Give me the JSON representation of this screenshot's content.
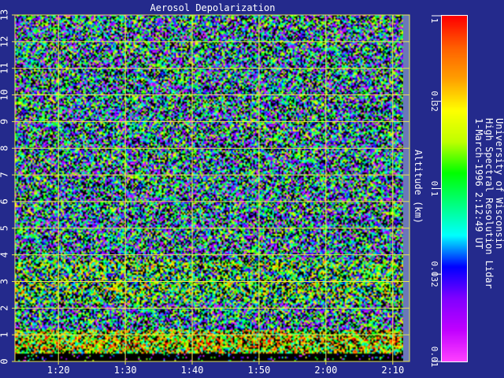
{
  "chart_data": {
    "type": "heatmap",
    "title": "Aerosol Depolarization",
    "ylabel": "Altitude (km)",
    "xlabel": "",
    "x_tick_labels": [
      "1:20",
      "1:30",
      "1:40",
      "1:50",
      "2:00",
      "2:10"
    ],
    "x_tick_minutes": [
      80,
      90,
      100,
      110,
      120,
      130
    ],
    "xlim_minutes": [
      73.5,
      132.5
    ],
    "y_tick_labels": [
      "0",
      "1",
      "2",
      "3",
      "4",
      "5",
      "6",
      "7",
      "8",
      "9",
      "10",
      "11",
      "12",
      "13"
    ],
    "ylim": [
      0,
      13
    ],
    "grid": true,
    "colorbar": {
      "scale": "log",
      "range": [
        0.01,
        1
      ],
      "tick_values": [
        0.01,
        0.032,
        0.1,
        0.32,
        1
      ],
      "tick_labels": [
        "0.01",
        "0.032",
        "0.1",
        "0.32",
        "1"
      ]
    },
    "colorbar_stops": [
      "#ff40ff",
      "#c000ff",
      "#8000ff",
      "#0000ff",
      "#00ffff",
      "#00ff80",
      "#00ff00",
      "#c0ff00",
      "#ffff00",
      "#ffa000",
      "#ff6000",
      "#ff0000"
    ],
    "annotation": [
      "University of Wisconsin",
      "High Spectral Resolution Lidar",
      "1-March-1996  2:12:49 UT"
    ],
    "colors": {
      "background": "#242a8c",
      "grid": "#e8e84c",
      "text": "#ffffff",
      "right_strip": "#6b78b8"
    },
    "data_layers": [
      {
        "altitude_km": [
          0,
          0.3
        ],
        "dominant": "black / dark"
      },
      {
        "altitude_km": [
          0.3,
          1.2
        ],
        "dominant": "green-yellow",
        "depolarization_approx": 0.2
      },
      {
        "altitude_km": [
          1.2,
          2.2
        ],
        "dominant": "cyan / blue",
        "depolarization_approx": 0.05
      },
      {
        "altitude_km": [
          2.2,
          3.8
        ],
        "dominant": "mixed, cyan-green streaks",
        "depolarization_approx": 0.1
      },
      {
        "altitude_km": [
          3.8,
          13
        ],
        "dominant": "noisy cyan / blue / black",
        "depolarization_approx": 0.05
      }
    ]
  }
}
